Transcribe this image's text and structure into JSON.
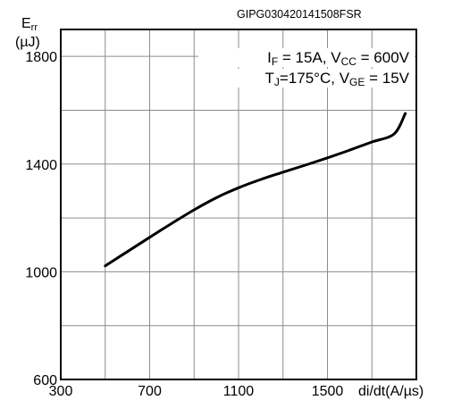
{
  "chart_data": {
    "type": "line",
    "title": "",
    "doc_code": "GIPG030420141508FSR",
    "ylabel_main": "E",
    "ylabel_sub": "rr",
    "yunit": "(µJ)",
    "xlabel": "di/dt(A/µs)",
    "conditions": [
      {
        "parts": [
          {
            "t": "I",
            "sub": false
          },
          {
            "t": "F",
            "sub": true
          },
          {
            "t": " = 15A, V",
            "sub": false
          },
          {
            "t": "CC",
            "sub": true
          },
          {
            "t": " = 600V",
            "sub": false
          }
        ]
      },
      {
        "parts": [
          {
            "t": "T",
            "sub": false
          },
          {
            "t": "J",
            "sub": true
          },
          {
            "t": "=175°C, V",
            "sub": false
          },
          {
            "t": "GE",
            "sub": true
          },
          {
            "t": " = 15V",
            "sub": false
          }
        ]
      }
    ],
    "xlim": [
      300,
      1900
    ],
    "ylim": [
      600,
      1900
    ],
    "x_ticks": [
      300,
      700,
      1100,
      1500
    ],
    "x_grid": [
      500,
      700,
      900,
      1100,
      1300,
      1500,
      1700
    ],
    "y_ticks": [
      600,
      1000,
      1400,
      1800
    ],
    "y_grid": [
      800,
      1000,
      1200,
      1400,
      1600,
      1800
    ],
    "grid": true,
    "series": [
      {
        "x": [
          500,
          600,
          700,
          800,
          900,
          1000,
          1100,
          1200,
          1300,
          1400,
          1500,
          1600,
          1700,
          1800,
          1850
        ],
        "y": [
          1022,
          1075,
          1128,
          1180,
          1230,
          1275,
          1312,
          1343,
          1370,
          1396,
          1423,
          1452,
          1482,
          1512,
          1588
        ]
      }
    ]
  }
}
